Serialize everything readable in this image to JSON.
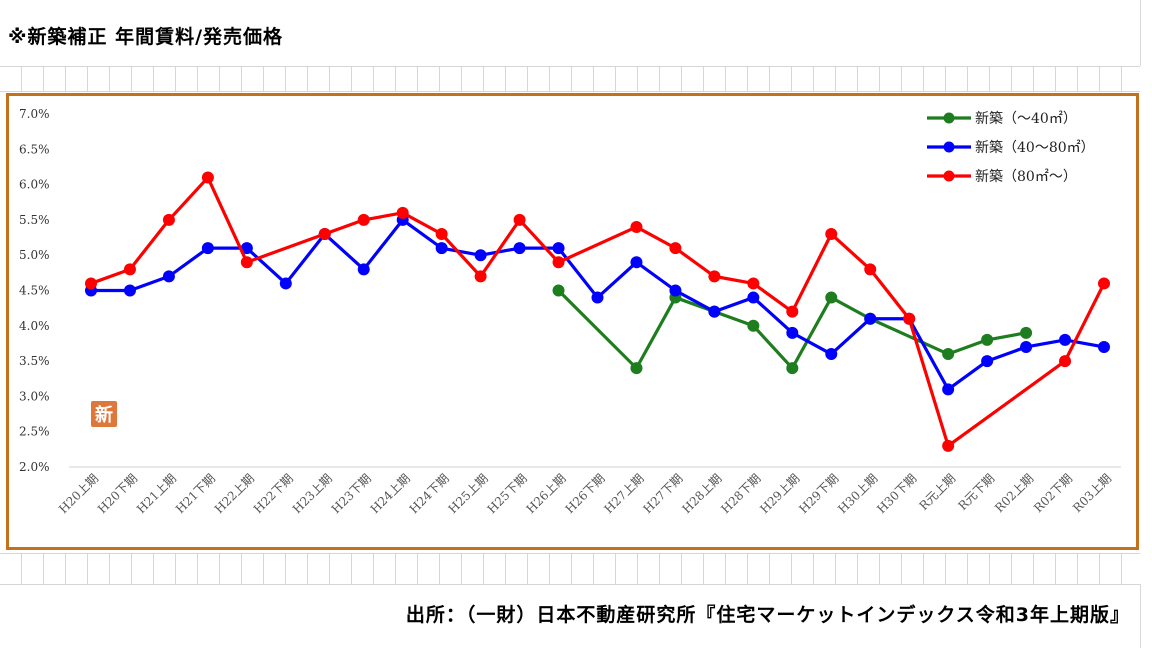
{
  "title": "※新築補正 年間賃料/発売価格",
  "source": "出所：（一財）日本不動産研究所『住宅マーケットインデックス令和3年上期版』",
  "badge": "新",
  "chart_data": {
    "type": "line",
    "categories": [
      "H20上期",
      "H20下期",
      "H21上期",
      "H21下期",
      "H22上期",
      "H22下期",
      "H23上期",
      "H23下期",
      "H24上期",
      "H24下期",
      "H25上期",
      "H25下期",
      "H26上期",
      "H26下期",
      "H27上期",
      "H27下期",
      "H28上期",
      "H28下期",
      "H29上期",
      "H29下期",
      "H30上期",
      "H30下期",
      "R元上期",
      "R元下期",
      "R02上期",
      "R02下期",
      "R03上期"
    ],
    "ylim": [
      2.0,
      7.0
    ],
    "yticks": [
      2.0,
      2.5,
      3.0,
      3.5,
      4.0,
      4.5,
      5.0,
      5.5,
      6.0,
      6.5,
      7.0
    ],
    "ytick_labels": [
      "2.0%",
      "2.5%",
      "3.0%",
      "3.5%",
      "4.0%",
      "4.5%",
      "5.0%",
      "5.5%",
      "6.0%",
      "6.5%",
      "7.0%"
    ],
    "legend_position": "top-right",
    "grid": false,
    "series": [
      {
        "name": "新築（～40㎡）",
        "color": "#1e7d1e",
        "values": [
          null,
          null,
          null,
          null,
          null,
          null,
          null,
          null,
          null,
          null,
          null,
          null,
          4.5,
          null,
          3.4,
          4.4,
          4.2,
          4.0,
          3.4,
          4.4,
          4.1,
          null,
          3.6,
          3.8,
          3.9,
          null,
          null
        ]
      },
      {
        "name": "新築（40～80㎡）",
        "color": "#0000ff",
        "values": [
          4.5,
          4.5,
          4.7,
          5.1,
          5.1,
          4.6,
          5.3,
          4.8,
          5.5,
          5.1,
          5.0,
          5.1,
          5.1,
          4.4,
          4.9,
          4.5,
          4.2,
          4.4,
          3.9,
          3.6,
          4.1,
          4.1,
          3.1,
          3.5,
          3.7,
          3.8,
          3.7
        ]
      },
      {
        "name": "新築（80㎡～）",
        "color": "#ff0000",
        "values": [
          4.6,
          4.8,
          5.5,
          6.1,
          4.9,
          null,
          5.3,
          5.5,
          5.6,
          5.3,
          4.7,
          5.5,
          4.9,
          null,
          5.4,
          5.1,
          4.7,
          4.6,
          4.2,
          5.3,
          4.8,
          4.1,
          2.3,
          null,
          null,
          3.5,
          4.6
        ]
      }
    ]
  }
}
